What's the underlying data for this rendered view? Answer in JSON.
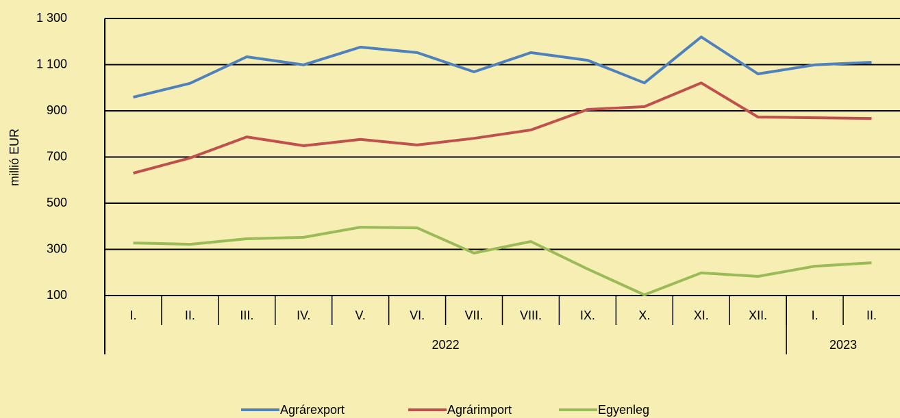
{
  "chart_data": {
    "type": "line",
    "y_label": "millió EUR",
    "categories": [
      "I.",
      "II.",
      "III.",
      "IV.",
      "V.",
      "VI.",
      "VII.",
      "VIII.",
      "IX.",
      "X.",
      "XI.",
      "XII.",
      "I.",
      "II."
    ],
    "x_groups": [
      {
        "label": "2022",
        "count": 12
      },
      {
        "label": "2023",
        "count": 2
      }
    ],
    "series": [
      {
        "name": "Agrárexport",
        "color": "#4f81bd",
        "values": [
          959,
          1019,
          1134,
          1099,
          1176,
          1152,
          1069,
          1152,
          1119,
          1021,
          1220,
          1060,
          1099,
          1110
        ]
      },
      {
        "name": "Agrárimport",
        "color": "#c0504d",
        "values": [
          630,
          696,
          787,
          749,
          776,
          752,
          781,
          817,
          906,
          918,
          1021,
          873,
          870,
          867
        ]
      },
      {
        "name": "Egyenleg",
        "color": "#9bbb59",
        "values": [
          328,
          322,
          346,
          352,
          396,
          393,
          284,
          334,
          215,
          103,
          198,
          183,
          227,
          242
        ]
      }
    ],
    "ylim": [
      100,
      1300
    ],
    "yticks": [
      100,
      300,
      500,
      700,
      900,
      {
        "value": 1100,
        "label": "1 100"
      },
      {
        "value": 1300,
        "label": "1 300"
      }
    ],
    "grid": true,
    "legend": "bottom"
  }
}
